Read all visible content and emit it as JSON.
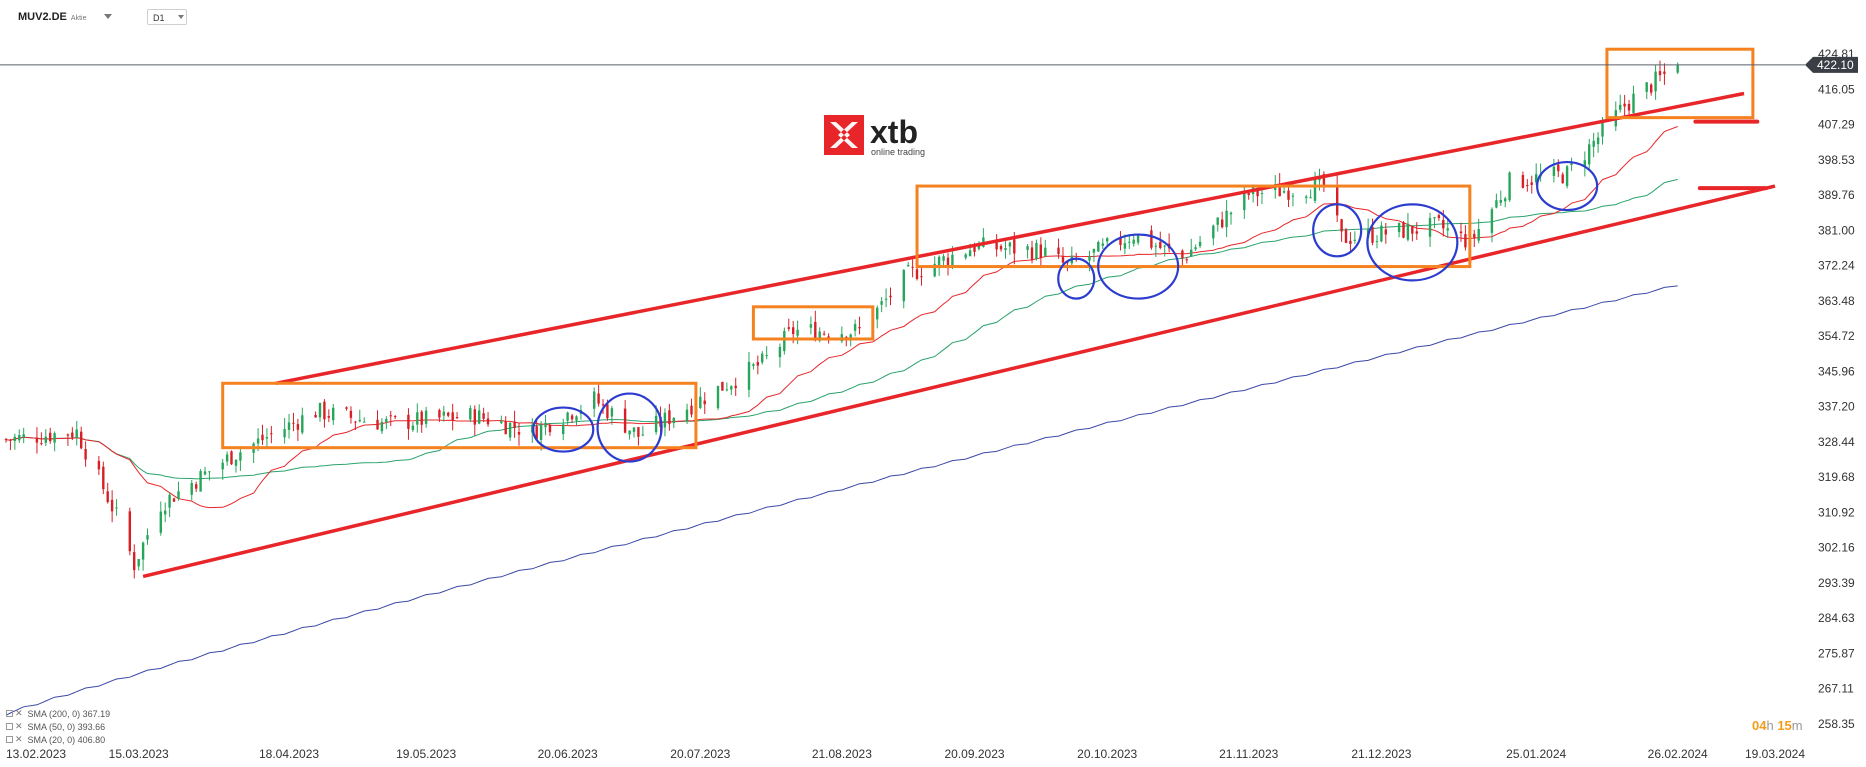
{
  "header": {
    "symbol": "MUV2.DE",
    "instrument_type": "Aktie",
    "timeframe": "D1"
  },
  "logo": {
    "brand": "xtb",
    "tagline": "online trading",
    "mark_color": "#e8262a"
  },
  "countdown": {
    "hours": "04",
    "h_unit": "h",
    "minutes": "15",
    "m_unit": "m"
  },
  "colors": {
    "bull": "#26a65b",
    "bear": "#d71f26",
    "sma20": "#e8262a",
    "sma50": "#2aa36b",
    "sma200": "#3c4aa8",
    "trendline": "#e8262a",
    "box": "#f5821f",
    "ellipse": "#2b3ccf",
    "price_label_bg": "#3b3f45"
  },
  "legend": [
    {
      "label": "SMA (200, 0) 367.19"
    },
    {
      "label": "SMA (50, 0) 393.66"
    },
    {
      "label": "SMA (20, 0) 406.80"
    }
  ],
  "chart_data": {
    "type": "candlestick",
    "price_axis": {
      "ticks": [
        "424.81",
        "416.05",
        "407.29",
        "398.53",
        "389.76",
        "381.00",
        "372.24",
        "363.48",
        "354.72",
        "345.96",
        "337.20",
        "328.44",
        "319.68",
        "310.92",
        "302.16",
        "293.39",
        "284.63",
        "275.87",
        "267.11",
        "258.35"
      ],
      "ylim": [
        258.35,
        424.81
      ]
    },
    "current_price": "422.10",
    "date_axis": {
      "ticks": [
        "13.02.2023",
        "15.03.2023",
        "18.04.2023",
        "19.05.2023",
        "20.06.2023",
        "20.07.2023",
        "21.08.2023",
        "20.09.2023",
        "20.10.2023",
        "21.11.2023",
        "21.12.2023",
        "25.01.2024",
        "26.02.2024",
        "19.03.2024"
      ]
    },
    "anchors": [
      {
        "date": "13.02.2023",
        "close": 329
      },
      {
        "date": "01.03.2023",
        "close": 331
      },
      {
        "date": "10.03.2023",
        "close": 310
      },
      {
        "date": "14.03.2023",
        "close": 298
      },
      {
        "date": "20.03.2023",
        "close": 313
      },
      {
        "date": "05.04.2023",
        "close": 325
      },
      {
        "date": "24.04.2023",
        "close": 336
      },
      {
        "date": "10.05.2023",
        "close": 333
      },
      {
        "date": "30.05.2023",
        "close": 335
      },
      {
        "date": "12.06.2023",
        "close": 331
      },
      {
        "date": "26.06.2023",
        "close": 339
      },
      {
        "date": "06.07.2023",
        "close": 330
      },
      {
        "date": "20.07.2023",
        "close": 339
      },
      {
        "date": "03.08.2023",
        "close": 348
      },
      {
        "date": "10.08.2023",
        "close": 356
      },
      {
        "date": "25.08.2023",
        "close": 356
      },
      {
        "date": "05.09.2023",
        "close": 370
      },
      {
        "date": "20.09.2023",
        "close": 377
      },
      {
        "date": "05.10.2023",
        "close": 376
      },
      {
        "date": "11.10.2023",
        "close": 372
      },
      {
        "date": "26.10.2023",
        "close": 380
      },
      {
        "date": "06.11.2023",
        "close": 374
      },
      {
        "date": "21.11.2023",
        "close": 390
      },
      {
        "date": "08.12.2023",
        "close": 392
      },
      {
        "date": "12.12.2023",
        "close": 379
      },
      {
        "date": "03.01.2024",
        "close": 382
      },
      {
        "date": "10.01.2024",
        "close": 378
      },
      {
        "date": "19.01.2024",
        "close": 393
      },
      {
        "date": "01.02.2024",
        "close": 395
      },
      {
        "date": "14.02.2024",
        "close": 412
      },
      {
        "date": "21.02.2024",
        "close": 418
      },
      {
        "date": "26.02.2024",
        "close": 422
      }
    ],
    "sma_endpoints": {
      "sma20": 406.8,
      "sma50": 393.66,
      "sma200": 367.19
    },
    "annotations": {
      "trend_channel": {
        "upper": [
          {
            "date": "15.04.2023",
            "price": 343
          },
          {
            "date": "12.03.2024",
            "price": 415
          }
        ],
        "lower": [
          {
            "date": "16.03.2023",
            "price": 295
          },
          {
            "date": "19.03.2024",
            "price": 392
          }
        ]
      },
      "consolidation_boxes": [
        {
          "from": "03.04.2023",
          "to": "19.07.2023",
          "high": 343,
          "low": 327
        },
        {
          "from": "01.08.2023",
          "to": "28.08.2023",
          "high": 362,
          "low": 354
        },
        {
          "from": "07.09.2023",
          "to": "10.01.2024",
          "high": 392,
          "low": 372
        },
        {
          "from": "10.02.2024",
          "to": "14.03.2024",
          "high": 426,
          "low": 409
        }
      ],
      "support_tests": [
        {
          "date": "19.06.2023",
          "price": 331.5
        },
        {
          "date": "04.07.2023",
          "price": 332
        },
        {
          "date": "13.10.2023",
          "price": 369
        },
        {
          "date": "27.10.2023",
          "price": 372
        },
        {
          "date": "11.12.2023",
          "price": 381
        },
        {
          "date": "28.12.2023",
          "price": 378
        },
        {
          "date": "01.02.2024",
          "price": 392
        }
      ],
      "target_marks": [
        {
          "from": "01.03.2024",
          "to": "15.03.2024",
          "price": 408
        },
        {
          "from": "02.03.2024",
          "to": "17.03.2024",
          "price": 391.5
        }
      ]
    }
  }
}
